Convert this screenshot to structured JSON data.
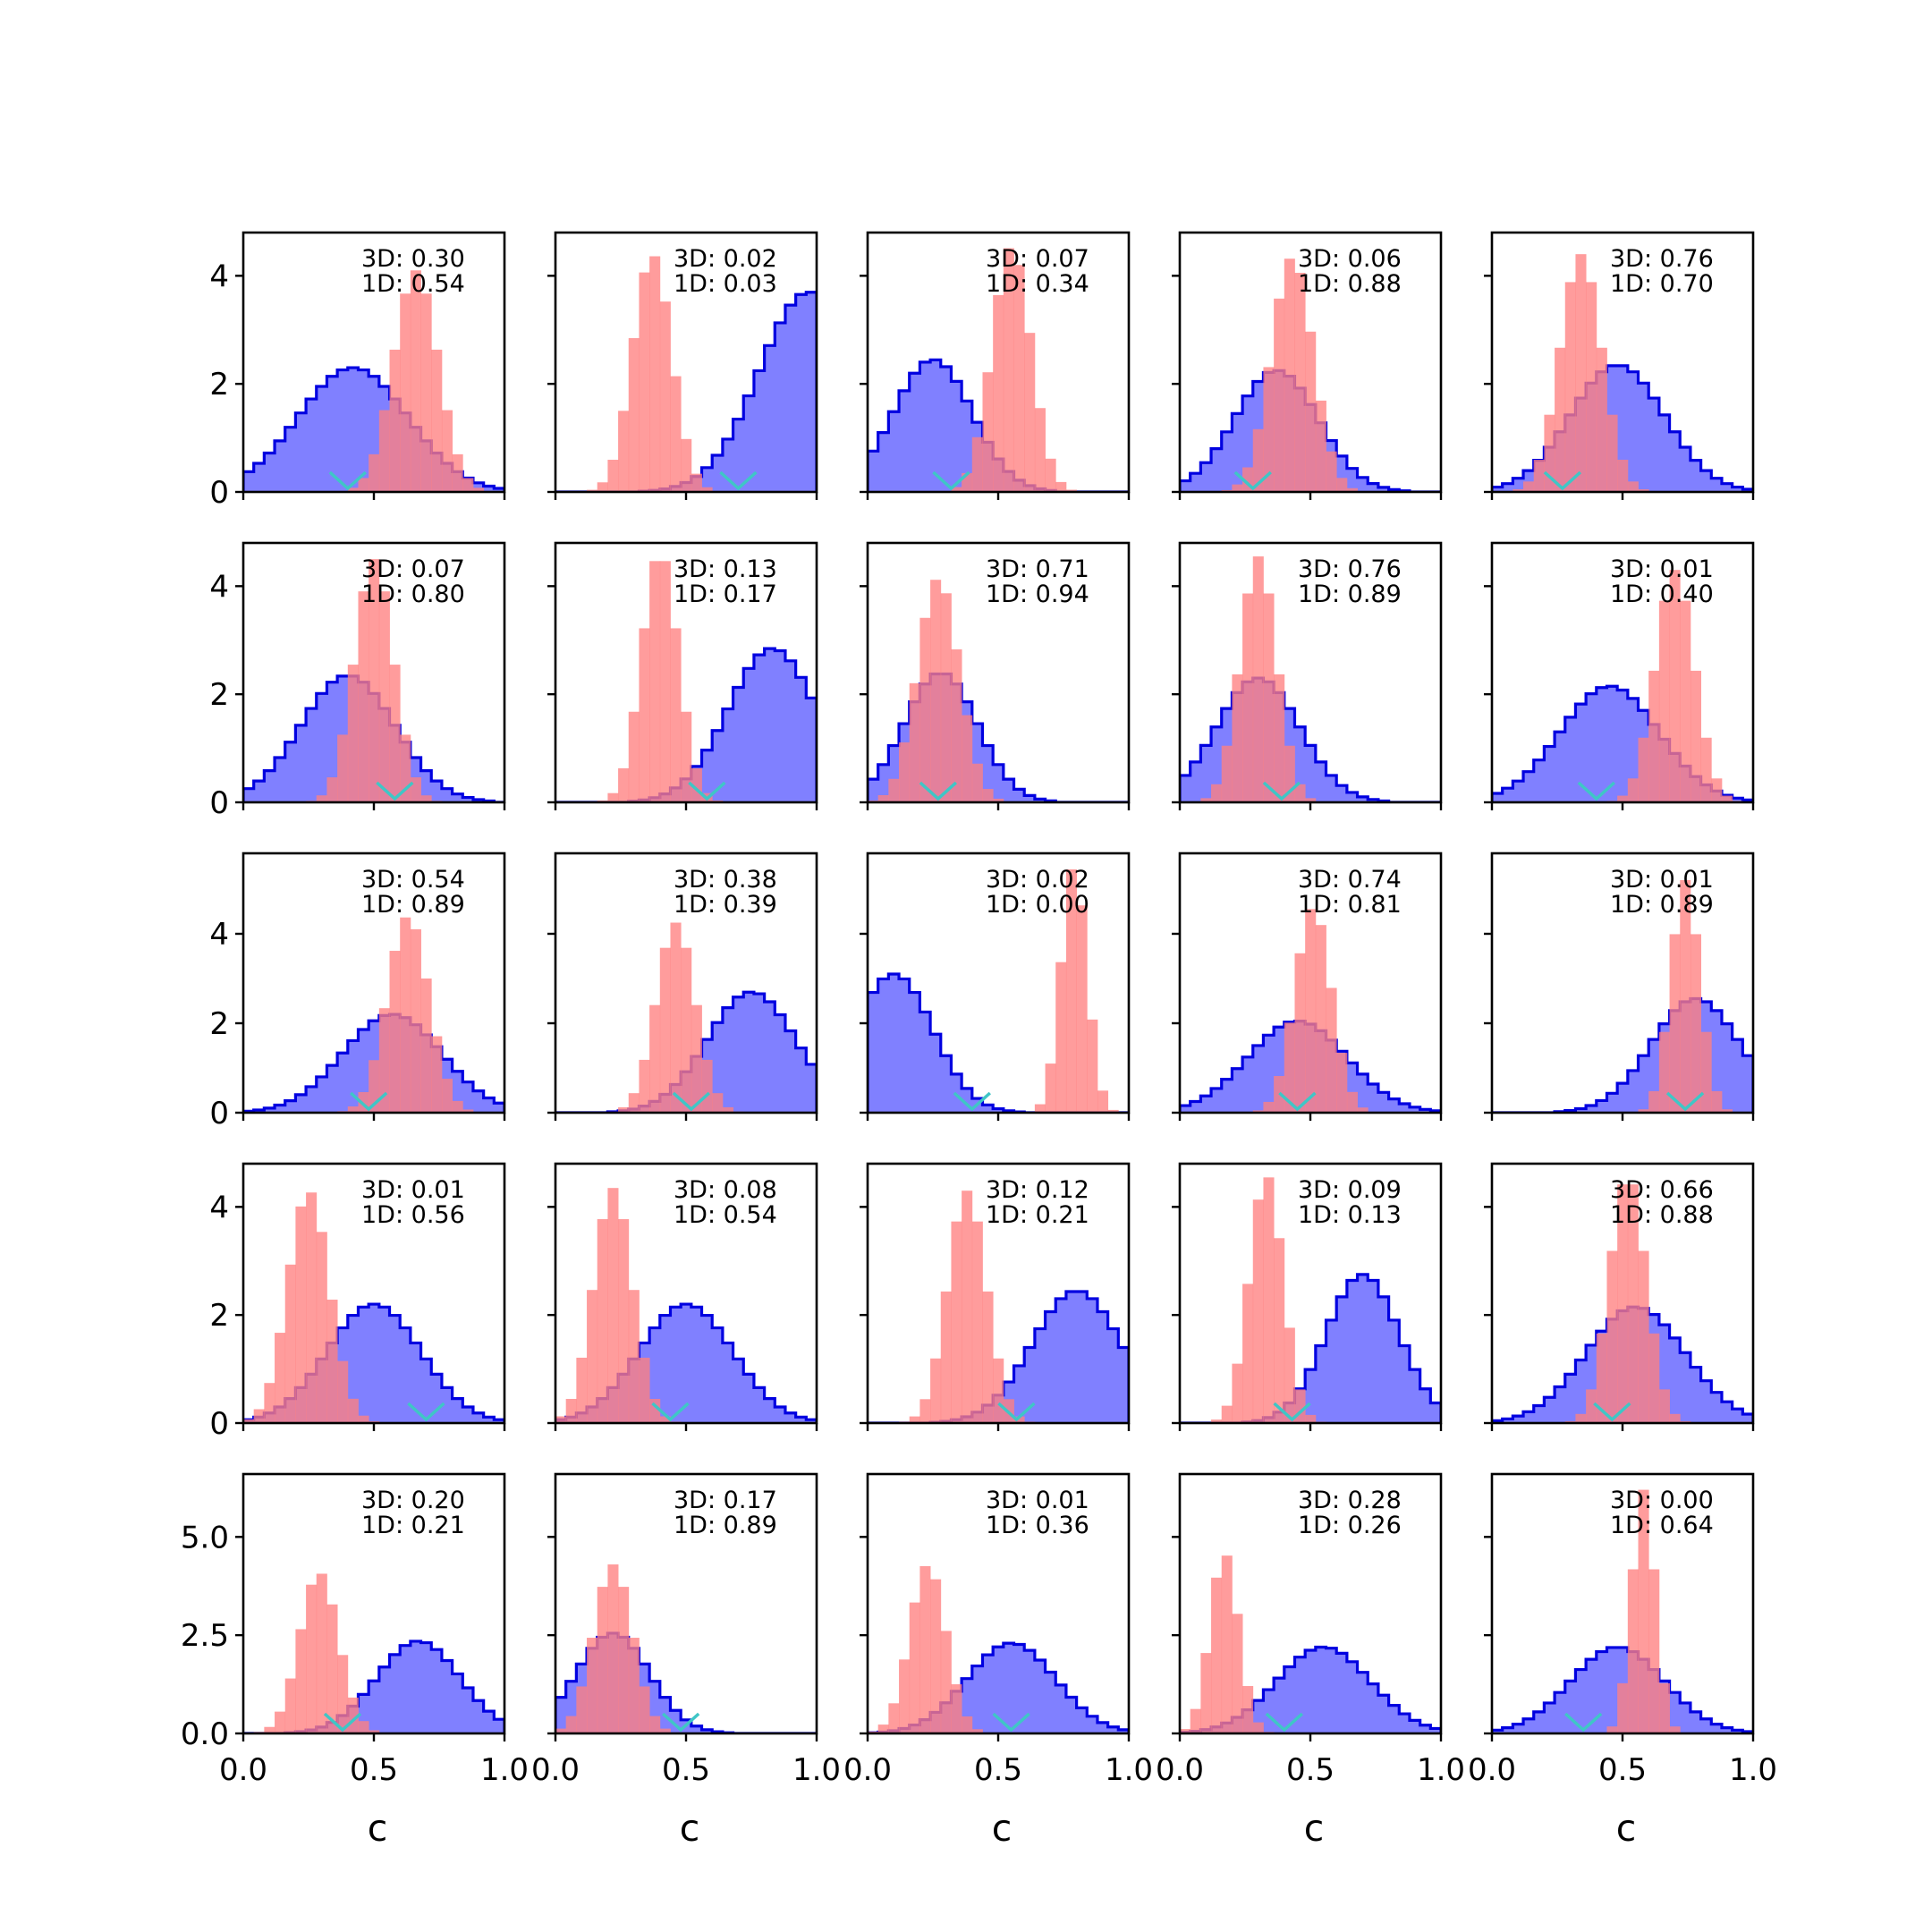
{
  "chart_data": {
    "type": "histogram-grid",
    "rows": 5,
    "cols": 5,
    "xlim": [
      0,
      1
    ],
    "xticks": [
      "0.0",
      "0.5",
      "1.0"
    ],
    "xlabel": "c",
    "row_ylims": [
      [
        0,
        4.8
      ],
      [
        0,
        4.8
      ],
      [
        0,
        5.8
      ],
      [
        0,
        4.8
      ],
      [
        0,
        6.6
      ]
    ],
    "row_yticks": [
      [
        "0",
        "2",
        "4"
      ],
      [
        "0",
        "2",
        "4"
      ],
      [
        "0",
        "2",
        "4"
      ],
      [
        "0",
        "2",
        "4"
      ],
      [
        "0.0",
        "2.5",
        "5.0"
      ]
    ],
    "row_ytick_values": [
      [
        0,
        2,
        4
      ],
      [
        0,
        2,
        4
      ],
      [
        0,
        2,
        4
      ],
      [
        0,
        2,
        4
      ],
      [
        0,
        2.5,
        5
      ]
    ],
    "colors": {
      "blue_fill": "#8080ff",
      "blue_edge": "#0000e0",
      "red_fill": "#ff8080",
      "marker": "#3fc6c6"
    },
    "panels": [
      {
        "label_3d": "3D: 0.30",
        "label_1d": "1D: 0.54",
        "blue": {
          "mu": 0.42,
          "sigma": 0.21,
          "peak": 2.3
        },
        "red": {
          "mu": 0.66,
          "sigma": 0.085,
          "peak": 4.1
        },
        "marker": 0.4
      },
      {
        "label_3d": "3D: 0.02",
        "label_1d": "1D: 0.03",
        "blue": {
          "mu": 0.97,
          "sigma": 0.19,
          "peak": 3.7
        },
        "red": {
          "mu": 0.37,
          "sigma": 0.075,
          "peak": 4.4
        },
        "marker": 0.7
      },
      {
        "label_3d": "3D: 0.07",
        "label_1d": "1D: 0.34",
        "blue": {
          "mu": 0.25,
          "sigma": 0.15,
          "peak": 2.45
        },
        "red": {
          "mu": 0.55,
          "sigma": 0.075,
          "peak": 4.55
        },
        "marker": 0.32
      },
      {
        "label_3d": "3D: 0.06",
        "label_1d": "1D: 0.88",
        "blue": {
          "mu": 0.37,
          "sigma": 0.16,
          "peak": 2.25
        },
        "red": {
          "mu": 0.43,
          "sigma": 0.08,
          "peak": 4.35
        },
        "marker": 0.28
      },
      {
        "label_3d": "3D: 0.76",
        "label_1d": "1D: 0.70",
        "blue": {
          "mu": 0.48,
          "sigma": 0.18,
          "peak": 2.35
        },
        "red": {
          "mu": 0.34,
          "sigma": 0.08,
          "peak": 4.4
        },
        "marker": 0.27
      },
      {
        "label_3d": "3D: 0.07",
        "label_1d": "1D: 0.80",
        "blue": {
          "mu": 0.4,
          "sigma": 0.18,
          "peak": 2.35
        },
        "red": {
          "mu": 0.5,
          "sigma": 0.075,
          "peak": 4.5
        },
        "marker": 0.58
      },
      {
        "label_3d": "3D: 0.13",
        "label_1d": "1D: 0.17",
        "blue": {
          "mu": 0.83,
          "sigma": 0.17,
          "peak": 2.85
        },
        "red": {
          "mu": 0.4,
          "sigma": 0.07,
          "peak": 4.65
        },
        "marker": 0.58
      },
      {
        "label_3d": "3D: 0.71",
        "label_1d": "1D: 0.94",
        "blue": {
          "mu": 0.28,
          "sigma": 0.14,
          "peak": 2.4
        },
        "red": {
          "mu": 0.27,
          "sigma": 0.08,
          "peak": 4.15
        },
        "marker": 0.27
      },
      {
        "label_3d": "3D: 0.76",
        "label_1d": "1D: 0.89",
        "blue": {
          "mu": 0.3,
          "sigma": 0.16,
          "peak": 2.3
        },
        "red": {
          "mu": 0.3,
          "sigma": 0.07,
          "peak": 4.55
        },
        "marker": 0.39
      },
      {
        "label_3d": "3D: 0.01",
        "label_1d": "1D: 0.40",
        "blue": {
          "mu": 0.45,
          "sigma": 0.19,
          "peak": 2.15
        },
        "red": {
          "mu": 0.7,
          "sigma": 0.075,
          "peak": 4.3
        },
        "marker": 0.4
      },
      {
        "label_3d": "3D: 0.54",
        "label_1d": "1D: 0.89",
        "blue": {
          "mu": 0.57,
          "sigma": 0.19,
          "peak": 2.2
        },
        "red": {
          "mu": 0.63,
          "sigma": 0.08,
          "peak": 4.4
        },
        "marker": 0.48
      },
      {
        "label_3d": "3D: 0.38",
        "label_1d": "1D: 0.39",
        "blue": {
          "mu": 0.75,
          "sigma": 0.17,
          "peak": 2.7
        },
        "red": {
          "mu": 0.46,
          "sigma": 0.075,
          "peak": 4.25
        },
        "marker": 0.52
      },
      {
        "label_3d": "3D: 0.02",
        "label_1d": "1D: 0.00",
        "blue": {
          "mu": 0.1,
          "sigma": 0.15,
          "peak": 3.1
        },
        "red": {
          "mu": 0.79,
          "sigma": 0.05,
          "peak": 5.55
        },
        "marker": 0.4
      },
      {
        "label_3d": "3D: 0.74",
        "label_1d": "1D: 0.81",
        "blue": {
          "mu": 0.45,
          "sigma": 0.19,
          "peak": 2.05
        },
        "red": {
          "mu": 0.51,
          "sigma": 0.07,
          "peak": 4.6
        },
        "marker": 0.45
      },
      {
        "label_3d": "3D: 0.01",
        "label_1d": "1D: 0.89",
        "blue": {
          "mu": 0.78,
          "sigma": 0.17,
          "peak": 2.55
        },
        "red": {
          "mu": 0.74,
          "sigma": 0.055,
          "peak": 5.2
        },
        "marker": 0.74
      },
      {
        "label_3d": "3D: 0.01",
        "label_1d": "1D: 0.56",
        "blue": {
          "mu": 0.5,
          "sigma": 0.18,
          "peak": 2.2
        },
        "red": {
          "mu": 0.25,
          "sigma": 0.08,
          "peak": 4.3
        },
        "marker": 0.7
      },
      {
        "label_3d": "3D: 0.08",
        "label_1d": "1D: 0.54",
        "blue": {
          "mu": 0.5,
          "sigma": 0.18,
          "peak": 2.2
        },
        "red": {
          "mu": 0.22,
          "sigma": 0.075,
          "peak": 4.35
        },
        "marker": 0.44
      },
      {
        "label_3d": "3D: 0.12",
        "label_1d": "1D: 0.21",
        "blue": {
          "mu": 0.8,
          "sigma": 0.17,
          "peak": 2.45
        },
        "red": {
          "mu": 0.38,
          "sigma": 0.075,
          "peak": 4.3
        },
        "marker": 0.57
      },
      {
        "label_3d": "3D: 0.09",
        "label_1d": "1D: 0.13",
        "blue": {
          "mu": 0.7,
          "sigma": 0.14,
          "peak": 2.75
        },
        "red": {
          "mu": 0.33,
          "sigma": 0.065,
          "peak": 4.6
        },
        "marker": 0.43
      },
      {
        "label_3d": "3D: 0.66",
        "label_1d": "1D: 0.88",
        "blue": {
          "mu": 0.55,
          "sigma": 0.19,
          "peak": 2.15
        },
        "red": {
          "mu": 0.52,
          "sigma": 0.07,
          "peak": 4.6
        },
        "marker": 0.46
      },
      {
        "label_3d": "3D: 0.20",
        "label_1d": "1D: 0.21",
        "blue": {
          "mu": 0.67,
          "sigma": 0.16,
          "peak": 2.35
        },
        "red": {
          "mu": 0.29,
          "sigma": 0.075,
          "peak": 4.1
        },
        "marker": 0.38
      },
      {
        "label_3d": "3D: 0.17",
        "label_1d": "1D: 0.89",
        "blue": {
          "mu": 0.22,
          "sigma": 0.14,
          "peak": 2.55
        },
        "red": {
          "mu": 0.22,
          "sigma": 0.075,
          "peak": 4.3
        },
        "marker": 0.48
      },
      {
        "label_3d": "3D: 0.01",
        "label_1d": "1D: 0.36",
        "blue": {
          "mu": 0.55,
          "sigma": 0.17,
          "peak": 2.3
        },
        "red": {
          "mu": 0.23,
          "sigma": 0.07,
          "peak": 4.3
        },
        "marker": 0.55
      },
      {
        "label_3d": "3D: 0.28",
        "label_1d": "1D: 0.26",
        "blue": {
          "mu": 0.55,
          "sigma": 0.18,
          "peak": 2.2
        },
        "red": {
          "mu": 0.17,
          "sigma": 0.055,
          "peak": 4.6
        },
        "marker": 0.4
      },
      {
        "label_3d": "3D: 0.00",
        "label_1d": "1D: 0.64",
        "blue": {
          "mu": 0.48,
          "sigma": 0.18,
          "peak": 2.2
        },
        "red": {
          "mu": 0.58,
          "sigma": 0.045,
          "peak": 6.2
        },
        "marker": 0.35
      }
    ]
  }
}
